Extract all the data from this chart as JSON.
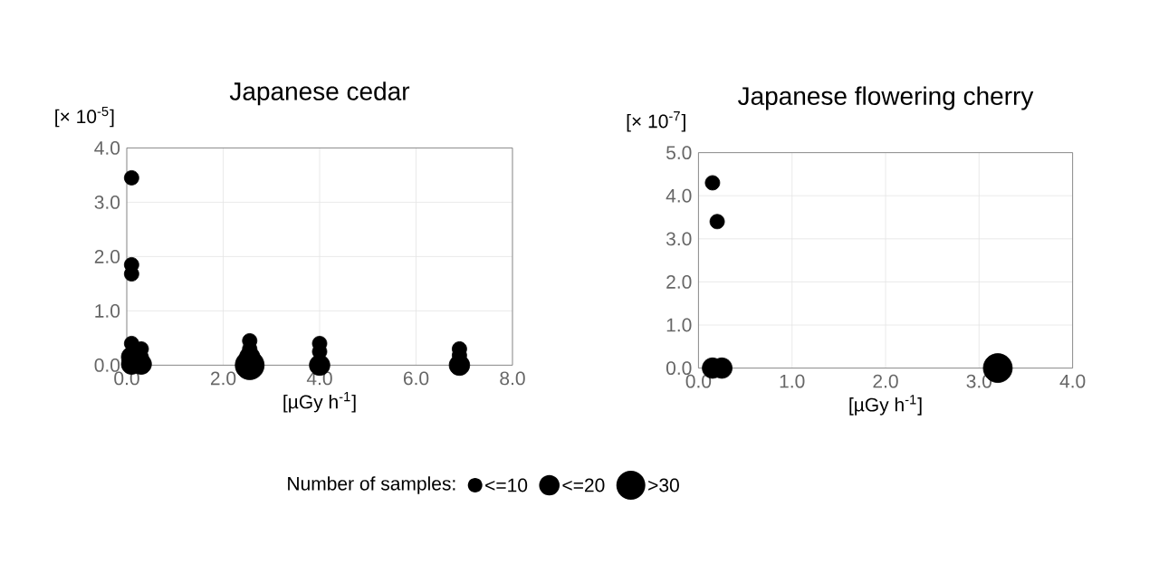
{
  "chart_data": [
    {
      "type": "bubble",
      "title": "Japanese cedar",
      "xlabel": "[µGy h$^{-1}$]",
      "ylabel": "[× 10$^{-5}$]",
      "legend_title": "Number of samples:",
      "grid": true,
      "size_legend": [
        {
          "value": 10,
          "label": "<=10"
        },
        {
          "value": 20,
          "label": "<=20"
        },
        {
          "value": 40,
          "label": ">30"
        }
      ],
      "xlim": [
        0,
        8
      ],
      "ylim": [
        0,
        4
      ],
      "xticks": [
        {
          "value": 0,
          "label": "0.0"
        },
        {
          "value": 2,
          "label": "2.0"
        },
        {
          "value": 4,
          "label": "4.0"
        },
        {
          "value": 6,
          "label": "6.0"
        },
        {
          "value": 8,
          "label": "8.0"
        }
      ],
      "yticks": [
        {
          "value": 0,
          "label": "0.0"
        },
        {
          "value": 1,
          "label": "1.0"
        },
        {
          "value": 2,
          "label": "2.0"
        },
        {
          "value": 3,
          "label": "3.0"
        },
        {
          "value": 4,
          "label": "4.0"
        }
      ],
      "series": [
        {
          "color": "#000000",
          "x": [
            0.1,
            0.1,
            0.1,
            0.1,
            0.1,
            0.1,
            0.3,
            0.3,
            0.3,
            2.55,
            2.55,
            2.55,
            2.55,
            4.0,
            4.0,
            4.0,
            6.9,
            6.9,
            6.9
          ],
          "values": [
            3.45,
            1.85,
            1.68,
            0.4,
            0.15,
            0.02,
            0.3,
            0.15,
            0.02,
            0.45,
            0.3,
            0.15,
            0.0,
            0.4,
            0.25,
            0.0,
            0.3,
            0.18,
            0.0
          ],
          "sizes": [
            10,
            10,
            10,
            10,
            20,
            20,
            10,
            10,
            20,
            10,
            10,
            20,
            40,
            10,
            10,
            20,
            10,
            10,
            20
          ]
        }
      ]
    },
    {
      "type": "bubble",
      "title": "Japanese flowering cherry",
      "xlabel": "[µGy h$^{-1}$]",
      "ylabel": "[× 10$^{-7}$]",
      "grid": true,
      "xlim": [
        0,
        4
      ],
      "ylim": [
        0,
        5
      ],
      "xticks": [
        {
          "value": 0,
          "label": "0.0"
        },
        {
          "value": 1,
          "label": "1.0"
        },
        {
          "value": 2,
          "label": "2.0"
        },
        {
          "value": 3,
          "label": "3.0"
        },
        {
          "value": 4,
          "label": "4.0"
        }
      ],
      "yticks": [
        {
          "value": 0,
          "label": "0.0"
        },
        {
          "value": 1,
          "label": "1.0"
        },
        {
          "value": 2,
          "label": "2.0"
        },
        {
          "value": 3,
          "label": "3.0"
        },
        {
          "value": 4,
          "label": "4.0"
        },
        {
          "value": 5,
          "label": "5.0"
        }
      ],
      "series": [
        {
          "color": "#000000",
          "x": [
            0.15,
            0.2,
            0.15,
            0.25,
            3.2
          ],
          "values": [
            4.3,
            3.4,
            0.0,
            0.0,
            0.0
          ],
          "sizes": [
            0.25,
            0.25,
            0.5,
            0.5,
            1
          ]
        }
      ]
    }
  ]
}
